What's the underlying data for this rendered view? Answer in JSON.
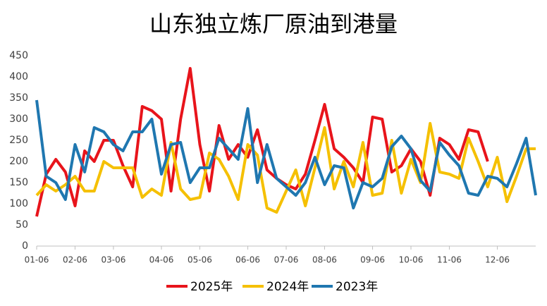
{
  "chart_data": {
    "type": "line",
    "title": "山东独立炼厂原油到港量",
    "categories": [
      "01-06",
      null,
      null,
      null,
      "02-06",
      null,
      null,
      null,
      "03-06",
      null,
      null,
      null,
      null,
      "04-06",
      null,
      null,
      null,
      "05-06",
      null,
      null,
      null,
      null,
      "06-06",
      null,
      null,
      null,
      "07-06",
      null,
      null,
      null,
      "08-06",
      null,
      null,
      null,
      null,
      "09-06",
      null,
      null,
      null,
      "10-06",
      null,
      null,
      null,
      "11-06",
      null,
      null,
      null,
      null,
      "12-06",
      null,
      null,
      null,
      null
    ],
    "series": [
      {
        "name": "2025年",
        "color": "#e8141b",
        "values": [
          70,
          170,
          205,
          175,
          95,
          225,
          200,
          250,
          250,
          190,
          140,
          330,
          320,
          300,
          130,
          300,
          420,
          240,
          130,
          285,
          205,
          240,
          210,
          275,
          180,
          160,
          145,
          135,
          170,
          250,
          335,
          230,
          210,
          185,
          150,
          305,
          300,
          175,
          190,
          230,
          200,
          120,
          255,
          240,
          205,
          275,
          270,
          200,
          null,
          null,
          null,
          null,
          null
        ]
      },
      {
        "name": "2024年",
        "color": "#f5c000",
        "values": [
          120,
          145,
          130,
          145,
          165,
          130,
          130,
          200,
          185,
          185,
          185,
          115,
          135,
          120,
          245,
          135,
          110,
          115,
          220,
          205,
          165,
          110,
          240,
          215,
          90,
          80,
          130,
          180,
          95,
          185,
          280,
          135,
          200,
          140,
          245,
          120,
          125,
          250,
          125,
          205,
          150,
          290,
          175,
          170,
          160,
          255,
          200,
          140,
          210,
          105,
          165,
          230,
          230
        ]
      },
      {
        "name": "2023年",
        "color": "#1f77b0",
        "values": [
          345,
          165,
          150,
          110,
          240,
          175,
          280,
          270,
          240,
          225,
          270,
          270,
          300,
          170,
          240,
          245,
          150,
          185,
          185,
          255,
          230,
          205,
          325,
          150,
          240,
          160,
          140,
          120,
          150,
          210,
          145,
          190,
          185,
          90,
          150,
          140,
          160,
          235,
          260,
          230,
          155,
          130,
          245,
          215,
          190,
          125,
          120,
          165,
          160,
          140,
          195,
          255,
          120
        ]
      }
    ],
    "ylim": [
      0,
      450
    ],
    "yticks": [
      0,
      50,
      100,
      150,
      200,
      250,
      300,
      350,
      400,
      450
    ],
    "legend": "bottom"
  }
}
